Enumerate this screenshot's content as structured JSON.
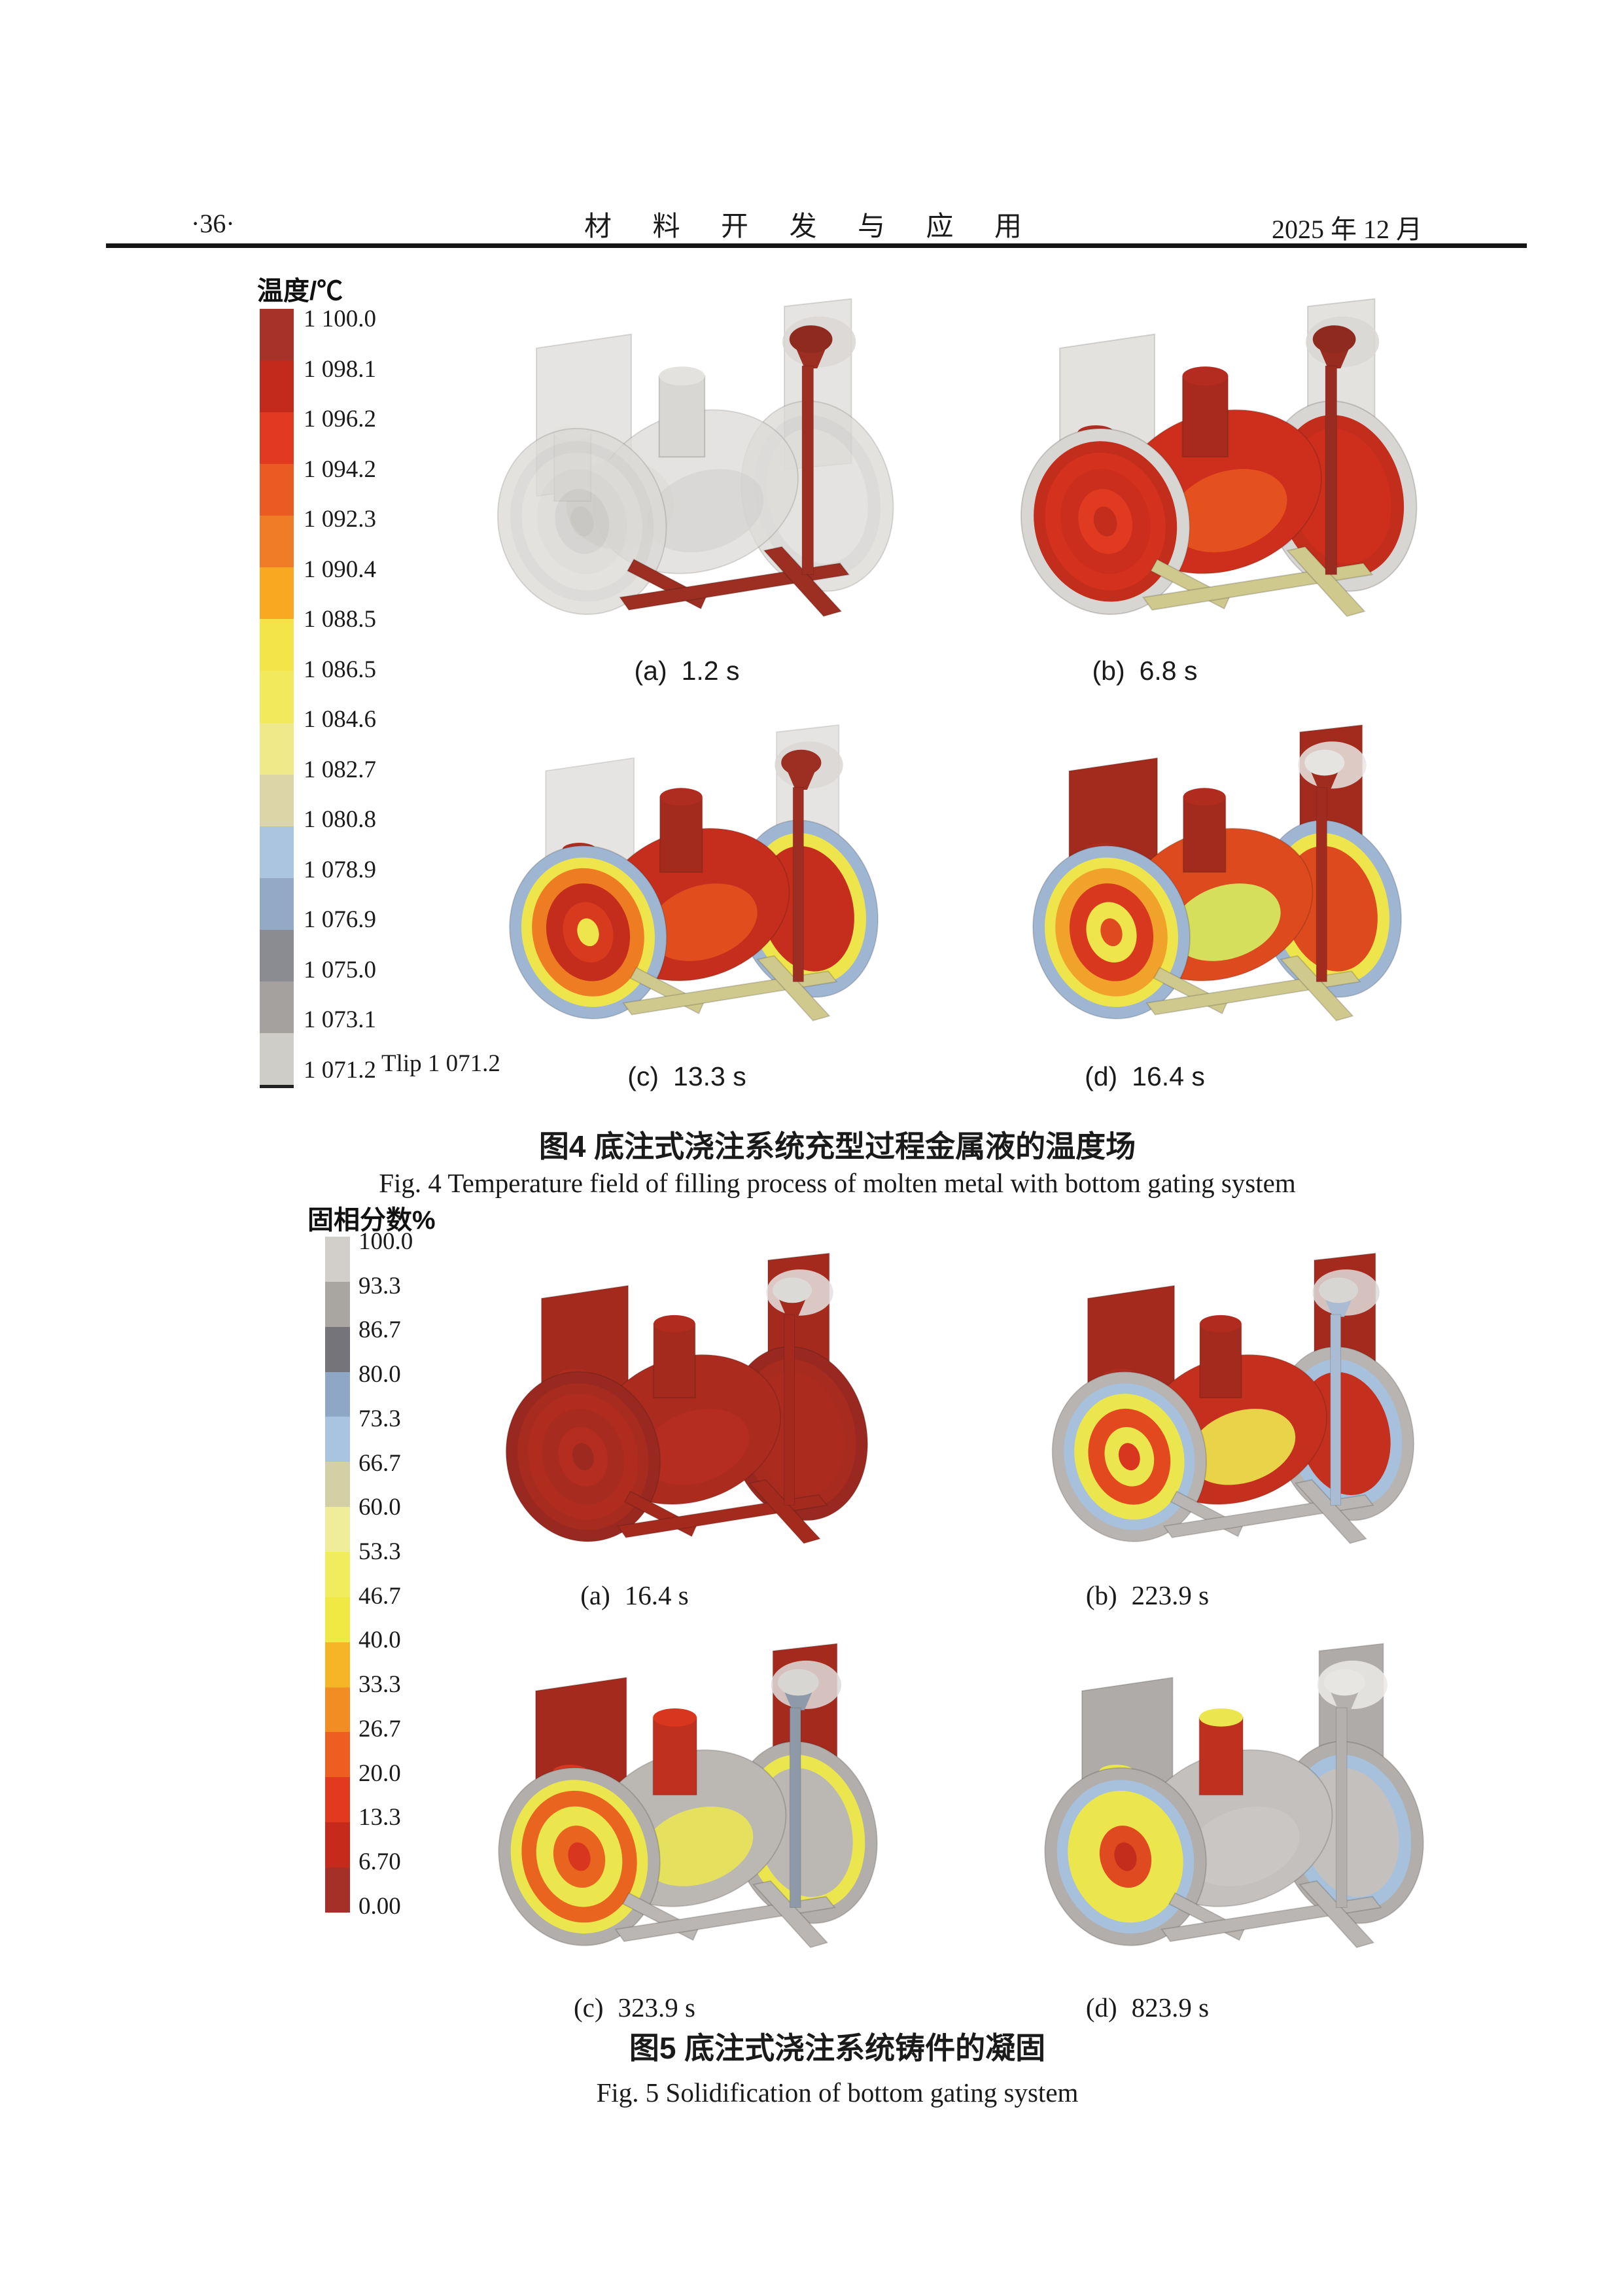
{
  "header": {
    "page_number": "·36·",
    "journal_title": "材 料 开 发 与 应 用",
    "issue_date": "2025 年 12 月"
  },
  "fig4": {
    "legend_title": "温度/℃",
    "legend_labels": [
      "1 100.0",
      "1 098.1",
      "1 096.2",
      "1 094.2",
      "1 092.3",
      "1 090.4",
      "1 088.5",
      "1 086.5",
      "1 084.6",
      "1 082.7",
      "1 080.8",
      "1 078.9",
      "1 076.9",
      "1 075.0",
      "1 073.1",
      "1 071.2"
    ],
    "legend_colors": [
      "#a63229",
      "#c32a1b",
      "#e23a20",
      "#ea5a23",
      "#f07c28",
      "#f8a921",
      "#f3e44a",
      "#f2ea5c",
      "#efe98a",
      "#dcd5a8",
      "#abc4e0",
      "#93a9c6",
      "#8b8c91",
      "#a5a19e",
      "#cfcdc8"
    ],
    "liquidus_note": "Tlip 1 071.2",
    "caption_cn": "图4  底注式浇注系统充型过程金属液的温度场",
    "caption_en": "Fig. 4   Temperature field of filling process of molten metal with bottom gating system",
    "panels": [
      {
        "label": "(a)",
        "time": "1.2 s",
        "scheme": {
          "plate": "#e0dedb",
          "plateOp": 0.8,
          "ringOuter": "#dcdad7",
          "ringMid": "#d4d2cf",
          "ringInner": "#dcdad7",
          "face": "#d7d5d2",
          "core": "#cbc9c6",
          "coreCenter": "#c2c0bd",
          "body": "#dedcd9",
          "bodyOp": 0.78,
          "accent": "#d0cecb",
          "accentOp": 0.5,
          "boss": "#d9d7d4",
          "bossTop": "#e4e2df",
          "sprue": "#9c2e22",
          "cup": "#8f2a1f",
          "cupOuter": "#d9d7d4",
          "runner": "#9c2e22"
        }
      },
      {
        "label": "(b)",
        "time": "6.8 s",
        "scheme": {
          "plate": "#dfddda",
          "plateOp": 0.85,
          "ringOuter": "#d8d6d3",
          "ringMid": "#c22d1c",
          "ringInner": "#d4321e",
          "face": "#cc2e1d",
          "core": "#e03a20",
          "coreCenter": "#c22d1c",
          "body": "#ce2f1d",
          "bodyOp": 1,
          "accent": "#e8551f",
          "accentOp": 0.9,
          "boss": "#a82a1e",
          "bossTop": "#b42c1f",
          "sprue": "#992c21",
          "cup": "#8f2a1f",
          "cupOuter": "#d9d7d4",
          "runner": "#cfc98e"
        }
      },
      {
        "label": "(c)",
        "time": "13.3 s",
        "scheme": {
          "plate": "#dcdad7",
          "plateOp": 0.7,
          "ringOuter": "#9fb6d2",
          "ringMid": "#eee44c",
          "ringInner": "#ee7c22",
          "face": "#c42d1c",
          "core": "#d83a1e",
          "coreCenter": "#eee44c",
          "body": "#c52e1c",
          "bodyOp": 1,
          "accent": "#e8551f",
          "accentOp": 0.8,
          "boss": "#a22b1e",
          "bossTop": "#ae2d20",
          "sprue": "#9c2e22",
          "cup": "#9c2e22",
          "cupOuter": "#d9d7d4",
          "runner": "#cfc98e"
        }
      },
      {
        "label": "(d)",
        "time": "16.4 s",
        "scheme": {
          "plate": "#a22b1e",
          "plateOp": 1,
          "ringOuter": "#9fb6d2",
          "ringMid": "#eee44c",
          "ringInner": "#f0a22a",
          "face": "#d8381e",
          "core": "#eee44c",
          "coreCenter": "#e04a20",
          "body": "#dd4a1e",
          "bodyOp": 1,
          "accent": "#d5df5c",
          "accentOp": 1,
          "boss": "#a22b1e",
          "bossTop": "#b02c1f",
          "sprue": "#a02c20",
          "cup": "#e6e4e1",
          "cupOuter": "#e8e6e3",
          "runner": "#cfc98e"
        }
      }
    ]
  },
  "fig5": {
    "legend_title": "固相分数%",
    "legend_labels": [
      "100.0",
      "93.3",
      "86.7",
      "80.0",
      "73.3",
      "66.7",
      "60.0",
      "53.3",
      "46.7",
      "40.0",
      "33.3",
      "26.7",
      "20.0",
      "13.3",
      "6.70",
      "0.00"
    ],
    "legend_colors": [
      "#d2cfca",
      "#a9a6a2",
      "#75747a",
      "#8ea7c6",
      "#a9c4e0",
      "#d5cfa6",
      "#efec9a",
      "#f1ec5e",
      "#f0e843",
      "#f6b527",
      "#f28d24",
      "#ee5e20",
      "#e13a1f",
      "#c52a1b",
      "#a53028"
    ],
    "caption_cn": "图5  底注式浇注系统铸件的凝固",
    "caption_en": "Fig. 5   Solidification of bottom gating system",
    "panels": [
      {
        "label": "(a)",
        "time": "16.4 s",
        "scheme": {
          "plate": "#a42a1e",
          "plateOp": 1,
          "ringOuter": "#992920",
          "ringMid": "#a82b1f",
          "ringInner": "#b02c1f",
          "face": "#a82b1f",
          "core": "#b42d20",
          "coreCenter": "#9c2a1e",
          "body": "#ac2b1f",
          "bodyOp": 1,
          "accent": "#b42d20",
          "accentOp": 1,
          "boss": "#a42a1e",
          "bossTop": "#b02c1f",
          "sprue": "#a42a1e",
          "cup": "#dcdad7",
          "cupOuter": "#e5e3e0",
          "runner": "#a42a1e"
        }
      },
      {
        "label": "(b)",
        "time": "223.9 s",
        "scheme": {
          "plate": "#a42a1e",
          "plateOp": 1,
          "ringOuter": "#b7b4b1",
          "ringMid": "#a7c0dc",
          "ringInner": "#ece64e",
          "face": "#e2491f",
          "core": "#ece64e",
          "coreCenter": "#d8361e",
          "body": "#c5301e",
          "bodyOp": 1,
          "accent": "#ece64e",
          "accentOp": 0.9,
          "boss": "#a42a1e",
          "bossTop": "#b02c1f",
          "sprue": "#a9bcd4",
          "cup": "#d8d6d3",
          "cupOuter": "#dedcd9",
          "runner": "#b9b6b3"
        }
      },
      {
        "label": "(c)",
        "time": "323.9 s",
        "scheme": {
          "plate": "#a42a1e",
          "plateOp": 1,
          "ringOuter": "#b1aeab",
          "ringMid": "#ece64e",
          "ringInner": "#e8641f",
          "face": "#ece64e",
          "core": "#e8641f",
          "coreCenter": "#d8361e",
          "body": "#bbb8b4",
          "bodyOp": 1,
          "accent": "#ece64e",
          "accentOp": 0.85,
          "boss": "#c0301e",
          "bossTop": "#d8361e",
          "sprue": "#8e9aa9",
          "cup": "#d8d6d3",
          "cupOuter": "#dedcd9",
          "runner": "#b9b6b3"
        }
      },
      {
        "label": "(d)",
        "time": "823.9 s",
        "scheme": {
          "plate": "#aeaba8",
          "plateOp": 1,
          "ringOuter": "#b1aeab",
          "ringMid": "#a7c0dc",
          "ringInner": "#ece64e",
          "face": "#ece64e",
          "core": "#e04a20",
          "coreCenter": "#c42d1c",
          "body": "#c3c0bd",
          "bodyOp": 1,
          "accent": "#c9c6c3",
          "accentOp": 1,
          "boss": "#c0301e",
          "bossTop": "#ece64e",
          "sprue": "#b3b0ad",
          "cup": "#e8e6e3",
          "cupOuter": "#eceae7",
          "runner": "#b9b6b3"
        }
      }
    ]
  }
}
